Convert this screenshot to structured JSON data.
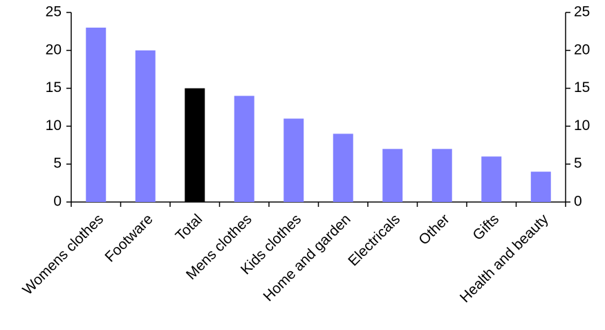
{
  "chart_data": {
    "type": "bar",
    "categories": [
      "Womens clothes",
      "Footware",
      "Total",
      "Mens clothes",
      "Kids clothes",
      "Home and garden",
      "Electricals",
      "Other",
      "Gifts",
      "Health and beauty"
    ],
    "values": [
      23,
      20,
      15,
      14,
      11,
      9,
      7,
      7,
      6,
      4
    ],
    "colors": [
      "#8080ff",
      "#8080ff",
      "#000000",
      "#8080ff",
      "#8080ff",
      "#8080ff",
      "#8080ff",
      "#8080ff",
      "#8080ff",
      "#8080ff"
    ],
    "ylim": [
      0,
      25
    ],
    "yticks": [
      0,
      5,
      10,
      15,
      20,
      25
    ],
    "y2lim": [
      0,
      25
    ],
    "y2ticks": [
      0,
      5,
      10,
      15,
      20,
      25
    ],
    "grid": false
  }
}
